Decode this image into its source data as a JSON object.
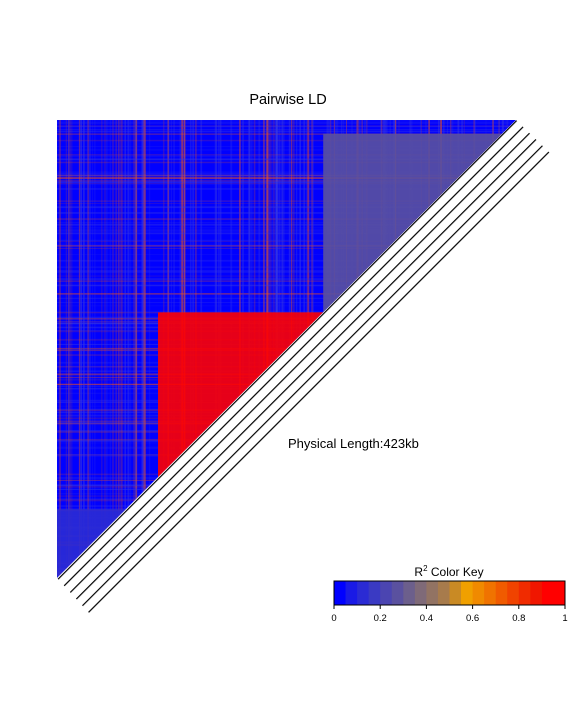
{
  "chart_data": {
    "type": "heatmap",
    "title": "Pairwise LD",
    "subtitle": "Physical Length:423kb",
    "color_key": {
      "label_base": "R",
      "label_sup": "2",
      "label_rest": " Color Key",
      "min": 0,
      "max": 1,
      "ticks": [
        "0",
        "0.2",
        "0.4",
        "0.6",
        "0.8",
        "1"
      ],
      "colors": [
        "#0000ff",
        "#1a1ae6",
        "#2b2bd4",
        "#3a3ac3",
        "#4b45b1",
        "#5a519f",
        "#6c5f8c",
        "#7f6a78",
        "#927363",
        "#a77b4c",
        "#c98a24",
        "#f0a000",
        "#f08a00",
        "#f07300",
        "#f05b00",
        "#f04300",
        "#f02b00",
        "#f01600",
        "#ff0000",
        "#ff0000"
      ]
    },
    "ld_blocks": [
      {
        "snp_from": 0.22,
        "snp_to": 0.58,
        "r2": 0.9
      },
      {
        "snp_from": 0.58,
        "snp_to": 0.97,
        "r2": 0.25
      },
      {
        "snp_from": 0.0,
        "snp_to": 0.15,
        "r2": 0.1
      }
    ]
  }
}
